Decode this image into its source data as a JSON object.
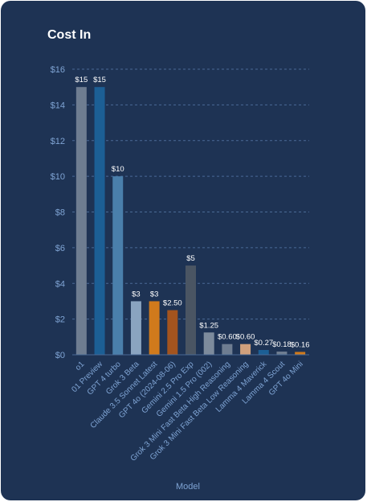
{
  "chart_data": {
    "type": "bar",
    "title": "Cost In",
    "xlabel": "Model",
    "ylabel": "",
    "ylim": [
      0,
      16
    ],
    "yticks": [
      0,
      2,
      4,
      6,
      8,
      10,
      12,
      14,
      16
    ],
    "ytick_labels": [
      "$0",
      "$2",
      "$4",
      "$6",
      "$8",
      "$10",
      "$12",
      "$14",
      "$16"
    ],
    "grid": true,
    "categories": [
      "o1",
      "01 Preview",
      "GPT 4 turbo",
      "Grok 3 Beta",
      "Claude 3.5 Sonnet Latest",
      "GPT 4o (2024-08-06)",
      "Gemini 2.5 Pro Exp",
      "Gemini 1.5 Pro (002)",
      "Grok 3 Mini Fast Beta High Reasoning",
      "Grok 3 Mini Fast Beta Low Reasoning",
      "Lamma 4 Maverick",
      "Lamma 4 Scout",
      "GPT 4o Mini"
    ],
    "values": [
      15,
      15,
      10,
      3,
      3,
      2.5,
      5,
      1.25,
      0.6,
      0.6,
      0.27,
      0.18,
      0.16
    ],
    "data_labels": [
      "$15",
      "$15",
      "$10",
      "$3",
      "$3",
      "$2.50",
      "$5",
      "$1.25",
      "$0.60",
      "$0.60",
      "$0.27",
      "$0.18",
      "$0.16"
    ],
    "colors": [
      "#6e7d91",
      "#1c5f95",
      "#4a7fab",
      "#8aa4c0",
      "#d07a1c",
      "#a4541e",
      "#4a5563",
      "#7d8b9c",
      "#6e7d91",
      "#d0a07c",
      "#1c5f95",
      "#6e7d91",
      "#d07a1c"
    ]
  }
}
